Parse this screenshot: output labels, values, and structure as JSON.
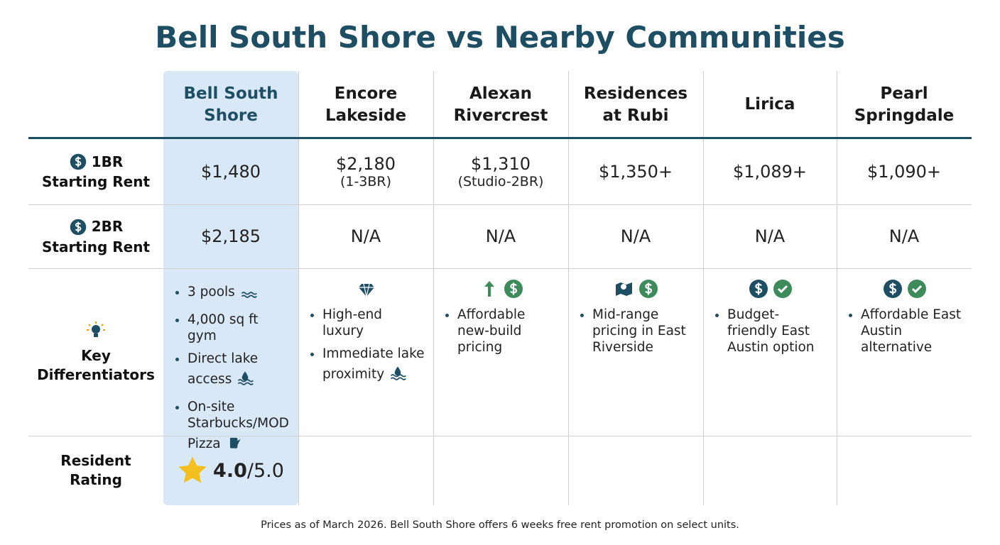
{
  "title": "Bell South Shore vs Nearby Communities",
  "table": {
    "columns": [
      [
        "Bell South",
        "Shore"
      ],
      [
        "Encore",
        "Lakeside"
      ],
      [
        "Alexan",
        "Rivercrest"
      ],
      [
        "Residences",
        "at Rubi"
      ],
      [
        "Lirica"
      ],
      [
        "Pearl",
        "Springdale"
      ]
    ],
    "rows": [
      {
        "label": [
          "1BR",
          "Starting Rent"
        ],
        "cells": [
          [
            "$1,480"
          ],
          [
            "$2,180",
            "(1-3BR)"
          ],
          [
            "$1,310",
            "(Studio-2BR)"
          ],
          [
            "$1,350+"
          ],
          [
            "$1,089+"
          ],
          [
            "$1,090+"
          ]
        ]
      },
      {
        "label": [
          "2BR",
          "Starting Rent"
        ],
        "cells": [
          [
            "$2,185"
          ],
          [
            "N/A"
          ],
          [
            "N/A"
          ],
          [
            "N/A"
          ],
          [
            "N/A"
          ],
          [
            "N/A"
          ]
        ]
      },
      {
        "label": [
          "Key",
          "Differentiators"
        ],
        "cells": [
          [
            "3 pools",
            "4,000 sq ft gym",
            "Direct lake access",
            "On-site Starbucks/MOD Pizza"
          ],
          [
            "High-end luxury",
            "Immediate lake proximity"
          ],
          [
            "Affordable new-build pricing"
          ],
          [
            "Mid-range pricing in East Riverside"
          ],
          [
            "Budget-friendly East Austin option"
          ],
          [
            "Affordable East Austin alternative"
          ]
        ]
      },
      {
        "label": [
          "Resident",
          "Rating"
        ],
        "cells": [
          {
            "score": "4.0",
            "scale": "/5.0"
          }
        ]
      }
    ]
  },
  "footnote": "Prices as of March 2026. Bell South Shore offers 6 weeks free rent promotion on select units."
}
